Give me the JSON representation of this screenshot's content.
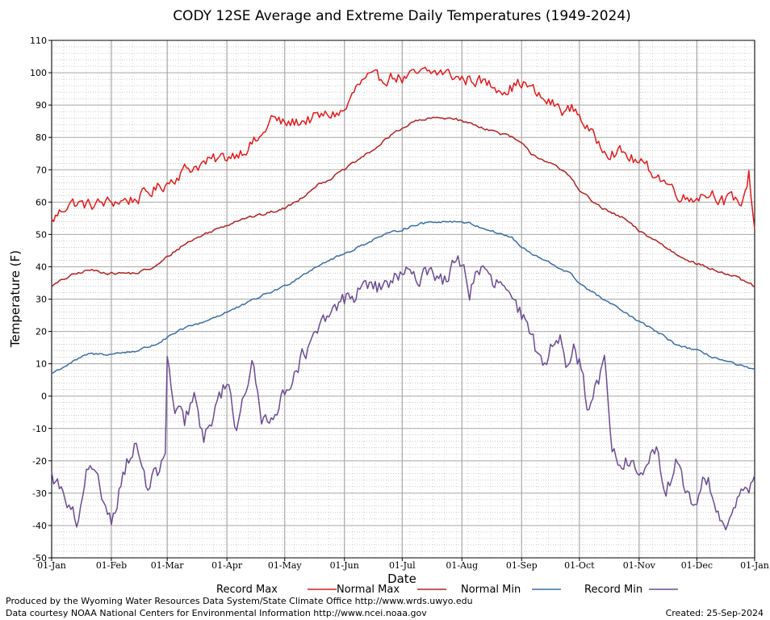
{
  "chart_data": {
    "type": "line",
    "title": "CODY 12SE Average and Extreme Daily Temperatures (1949-2024)",
    "xlabel": "Date",
    "ylabel": "Temperature (F)",
    "ylim": [
      -50,
      110
    ],
    "yticks": [
      -50,
      -40,
      -30,
      -20,
      -10,
      0,
      10,
      20,
      30,
      40,
      50,
      60,
      70,
      80,
      90,
      100,
      110
    ],
    "xlim_day": [
      1,
      366
    ],
    "xticks": [
      {
        "label": "01-Jan",
        "day": 1
      },
      {
        "label": "01-Feb",
        "day": 32
      },
      {
        "label": "01-Mar",
        "day": 61
      },
      {
        "label": "01-Apr",
        "day": 92
      },
      {
        "label": "01-May",
        "day": 122
      },
      {
        "label": "01-Jun",
        "day": 153
      },
      {
        "label": "01-Jul",
        "day": 183
      },
      {
        "label": "01-Aug",
        "day": 214
      },
      {
        "label": "01-Sep",
        "day": 245
      },
      {
        "label": "01-Oct",
        "day": 275
      },
      {
        "label": "01-Nov",
        "day": 306
      },
      {
        "label": "01-Dec",
        "day": 336
      },
      {
        "label": "01-Jan",
        "day": 366
      }
    ],
    "grid": true,
    "legend_position": "bottom",
    "x_unit": "day of year",
    "series": [
      {
        "name": "Record Max",
        "color": "#e41a1c",
        "x": [
          1,
          10,
          20,
          32,
          45,
          55,
          61,
          70,
          80,
          92,
          100,
          110,
          115,
          122,
          130,
          138,
          145,
          153,
          160,
          165,
          170,
          180,
          183,
          195,
          205,
          214,
          220,
          230,
          238,
          245,
          250,
          255,
          262,
          268,
          272,
          275,
          282,
          290,
          298,
          306,
          312,
          320,
          330,
          336,
          345,
          350,
          355,
          360,
          363,
          366
        ],
        "values": [
          54,
          60,
          59,
          60,
          61,
          64,
          66,
          70,
          72,
          74,
          76,
          80,
          86,
          84,
          85,
          86,
          87,
          88,
          96,
          98,
          98,
          99,
          98,
          100,
          100,
          98,
          98,
          96,
          95,
          97,
          95,
          92,
          90,
          88,
          89,
          87,
          80,
          76,
          75,
          72,
          70,
          66,
          61,
          62,
          63,
          60,
          61,
          60,
          69,
          52
        ]
      },
      {
        "name": "Normal Max",
        "color": "#b22222",
        "x": [
          1,
          10,
          20,
          32,
          45,
          55,
          61,
          70,
          80,
          92,
          100,
          110,
          122,
          130,
          138,
          145,
          153,
          160,
          170,
          180,
          190,
          200,
          210,
          214,
          220,
          230,
          240,
          245,
          250,
          260,
          270,
          275,
          282,
          290,
          298,
          306,
          315,
          325,
          336,
          345,
          355,
          366
        ],
        "values": [
          34,
          37,
          39,
          38,
          38,
          40,
          43,
          47,
          50,
          53,
          55,
          56,
          58,
          61,
          65,
          67,
          70,
          73,
          77,
          82,
          85,
          86,
          86,
          85,
          84,
          82,
          80,
          78,
          75,
          72,
          68,
          64,
          60,
          57,
          55,
          51,
          48,
          44,
          41,
          39,
          37,
          34
        ]
      },
      {
        "name": "Normal Min",
        "color": "#3a6ea5",
        "x": [
          1,
          10,
          20,
          32,
          45,
          55,
          61,
          70,
          80,
          92,
          100,
          110,
          122,
          130,
          138,
          145,
          153,
          160,
          170,
          180,
          190,
          200,
          210,
          214,
          220,
          230,
          240,
          245,
          250,
          260,
          270,
          275,
          282,
          290,
          298,
          306,
          315,
          325,
          336,
          345,
          355,
          366
        ],
        "values": [
          7,
          10,
          13,
          13,
          14,
          16,
          18,
          21,
          23,
          26,
          28,
          31,
          34,
          37,
          40,
          42,
          44,
          46,
          49,
          51,
          53,
          54,
          54,
          54,
          53,
          51,
          49,
          46,
          44,
          41,
          38,
          35,
          32,
          29,
          26,
          23,
          20,
          16,
          14,
          12,
          10,
          8
        ]
      },
      {
        "name": "Record Min",
        "color": "#6a4c93",
        "x": [
          1,
          5,
          10,
          15,
          20,
          25,
          32,
          40,
          45,
          50,
          55,
          60,
          61,
          65,
          70,
          75,
          80,
          85,
          92,
          97,
          100,
          105,
          110,
          115,
          122,
          128,
          135,
          140,
          145,
          150,
          153,
          160,
          165,
          170,
          175,
          180,
          185,
          190,
          195,
          200,
          205,
          210,
          214,
          218,
          222,
          226,
          230,
          235,
          240,
          245,
          248,
          252,
          256,
          260,
          265,
          268,
          272,
          275,
          280,
          285,
          288,
          292,
          295,
          300,
          306,
          310,
          315,
          320,
          325,
          330,
          336,
          340,
          345,
          350,
          355,
          360,
          366
        ],
        "values": [
          -25,
          -28,
          -35,
          -40,
          -22,
          -28,
          -38,
          -20,
          -15,
          -28,
          -25,
          -18,
          10,
          -5,
          -8,
          0,
          -15,
          -5,
          5,
          -10,
          0,
          10,
          -8,
          -5,
          0,
          10,
          15,
          20,
          25,
          28,
          30,
          32,
          35,
          33,
          35,
          36,
          38,
          35,
          40,
          38,
          36,
          40,
          42,
          32,
          40,
          38,
          34,
          35,
          28,
          25,
          20,
          15,
          10,
          15,
          20,
          12,
          15,
          10,
          -5,
          5,
          15,
          -15,
          -22,
          -20,
          -25,
          -20,
          -18,
          -30,
          -20,
          -30,
          -35,
          -25,
          -30,
          -40,
          -35,
          -30,
          -25
        ]
      }
    ]
  },
  "footer": {
    "line1": "Produced by the Wyoming Water Resources Data System/State Climate Office http://www.wrds.uwyo.edu",
    "line2": "Data courtesy NOAA National Centers for Environmental Information http://www.ncei.noaa.gov",
    "created": "Created:  25-Sep-2024"
  }
}
